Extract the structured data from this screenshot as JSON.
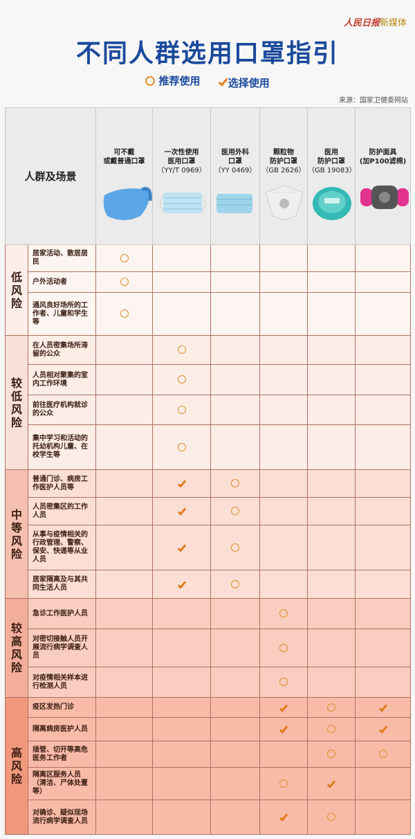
{
  "brand": {
    "logo": "人民日报",
    "suffix": "新媒体"
  },
  "title": "不同人群选用口罩指引",
  "legend": [
    {
      "icon": "circle-icon",
      "label": "推荐使用"
    },
    {
      "icon": "check-icon",
      "label": "选择使用"
    }
  ],
  "source": "来源：国家卫健委网站",
  "colors": {
    "title": "#1a4a9c",
    "mark": "#e07b1a",
    "header": "#ebebeb"
  },
  "table": {
    "corner": "人群及场景",
    "columns": [
      {
        "name": "可不戴\n或戴普通口罩",
        "code": "",
        "image": "blue-fabric-mask"
      },
      {
        "name": "一次性使用\n医用口罩",
        "code": "（YY/T 0969）",
        "image": "disposable-medical-mask"
      },
      {
        "name": "医用外科\n口罩",
        "code": "（YY 0469）",
        "image": "surgical-mask"
      },
      {
        "name": "颗粒物\n防护口罩",
        "code": "（GB 2626）",
        "image": "particulate-respirator"
      },
      {
        "name": "医用\n防护口罩",
        "code": "（GB 19083）",
        "image": "medical-respirator"
      },
      {
        "name": "防护面具\n(加P100滤棉)",
        "code": "",
        "image": "gas-mask"
      }
    ],
    "groups": [
      {
        "label": "低风险",
        "bg": "#fdf5f1",
        "lbg": "#fbeee9",
        "rows": [
          {
            "scene": "居家活动、散居居民",
            "marks": [
              "o",
              "",
              "",
              "",
              "",
              ""
            ]
          },
          {
            "scene": "户外活动者",
            "marks": [
              "o",
              "",
              "",
              "",
              "",
              ""
            ]
          },
          {
            "scene": "通风良好场所的工作者、儿童和学生等",
            "marks": [
              "o",
              "",
              "",
              "",
              "",
              ""
            ]
          }
        ]
      },
      {
        "label": "较低风险",
        "bg": "#fcede7",
        "lbg": "#f9e0d8",
        "rows": [
          {
            "scene": "在人员密集场所滞留的公众",
            "marks": [
              "",
              "o",
              "",
              "",
              "",
              ""
            ]
          },
          {
            "scene": "人员相对聚集的室内工作环境",
            "marks": [
              "",
              "o",
              "",
              "",
              "",
              ""
            ]
          },
          {
            "scene": "前往医疗机构就诊的公众",
            "marks": [
              "",
              "o",
              "",
              "",
              "",
              ""
            ]
          },
          {
            "scene": "集中学习和活动的托幼机构儿童、在校学生等",
            "marks": [
              "",
              "o",
              "",
              "",
              "",
              ""
            ]
          }
        ]
      },
      {
        "label": "中等风险",
        "bg": "#fbdfd5",
        "lbg": "#f5c0b0",
        "rows": [
          {
            "scene": "普通门诊、病房工作医护人员等",
            "marks": [
              "",
              "v",
              "o",
              "",
              "",
              ""
            ]
          },
          {
            "scene": "人员密集区的工作人员",
            "marks": [
              "",
              "v",
              "o",
              "",
              "",
              ""
            ]
          },
          {
            "scene": "从事与疫情相关的行政管理、警察、保安、快递等从业人员",
            "marks": [
              "",
              "v",
              "o",
              "",
              "",
              ""
            ]
          },
          {
            "scene": "居家隔离及与其共同生活人员",
            "marks": [
              "",
              "v",
              "o",
              "",
              "",
              ""
            ]
          }
        ]
      },
      {
        "label": "较高风险",
        "bg": "#f9cdbf",
        "lbg": "#f3ae9b",
        "rows": [
          {
            "scene": "急诊工作医护人员",
            "marks": [
              "",
              "",
              "",
              "o",
              "",
              ""
            ]
          },
          {
            "scene": "对密切接触人员开展流行病学调查人员",
            "marks": [
              "",
              "",
              "",
              "o",
              "",
              ""
            ]
          },
          {
            "scene": "对疫情相关样本进行检测人员",
            "marks": [
              "",
              "",
              "",
              "o",
              "",
              ""
            ]
          }
        ]
      },
      {
        "label": "高风险",
        "bg": "#f8bba8",
        "lbg": "#f0987c",
        "rows": [
          {
            "scene": "疫区发热门诊",
            "marks": [
              "",
              "",
              "",
              "v",
              "o",
              "v"
            ]
          },
          {
            "scene": "隔离病房医护人员",
            "marks": [
              "",
              "",
              "",
              "v",
              "o",
              "v"
            ]
          },
          {
            "scene": "插管、切开等高危医务工作者",
            "marks": [
              "",
              "",
              "",
              "",
              "o",
              "o"
            ]
          },
          {
            "scene": "隔离区服务人员（清洁、尸体处置等）",
            "marks": [
              "",
              "",
              "",
              "o",
              "v",
              ""
            ]
          },
          {
            "scene": "对确诊、疑似现场流行病学调查人员",
            "marks": [
              "",
              "",
              "",
              "v",
              "o",
              ""
            ]
          }
        ]
      }
    ]
  }
}
